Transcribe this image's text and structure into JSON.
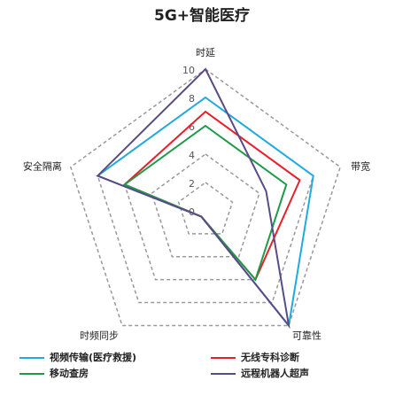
{
  "chart_data": {
    "type": "radar",
    "title": "5G+智能医疗",
    "axes": [
      "时延",
      "带宽",
      "可靠性",
      "时频同步",
      "安全隔离"
    ],
    "rlim": [
      0,
      10
    ],
    "rticks": [
      0,
      2,
      4,
      6,
      8,
      10
    ],
    "grid": true,
    "series": [
      {
        "name": "视频传输(医疗救援)",
        "color": "#21a9e1",
        "values": [
          8,
          8,
          10,
          0.5,
          8
        ]
      },
      {
        "name": "无线专科诊断",
        "color": "#e8202a",
        "values": [
          7,
          7,
          6,
          0.5,
          6
        ]
      },
      {
        "name": "移动查房",
        "color": "#1e9b48",
        "values": [
          6,
          6,
          6,
          0.5,
          6
        ]
      },
      {
        "name": "远程机器人超声",
        "color": "#5a4a86",
        "values": [
          10,
          4.5,
          10,
          0.5,
          8
        ]
      }
    ]
  }
}
